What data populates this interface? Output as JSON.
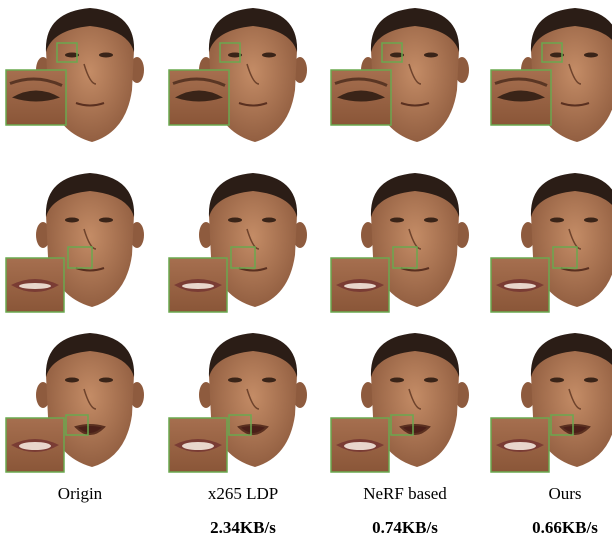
{
  "columns": [
    {
      "label": "Origin"
    },
    {
      "label": "x265 LDP",
      "bitrate": "2.34KB/s"
    },
    {
      "label": "NeRF based",
      "bitrate": "0.74KB/s"
    },
    {
      "label": "Ours",
      "bitrate": "0.66KB/s"
    }
  ]
}
